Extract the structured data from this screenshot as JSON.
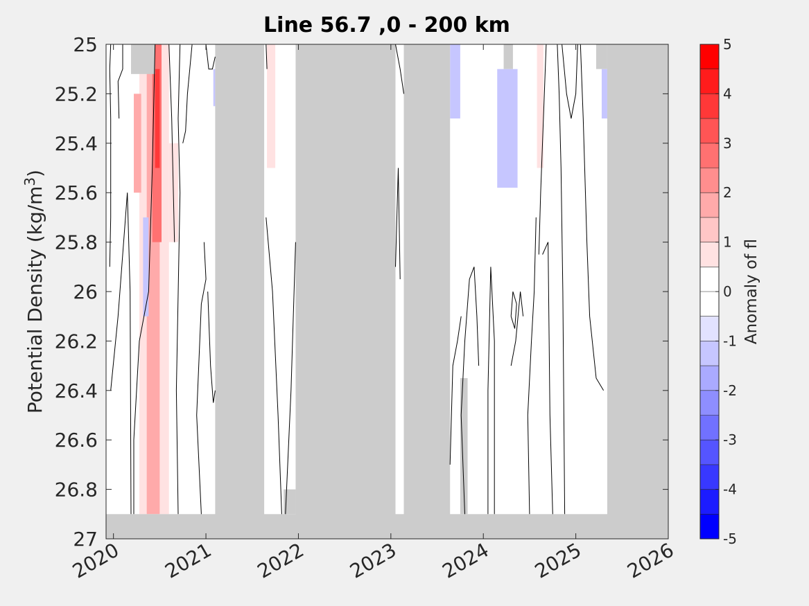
{
  "chart_data": {
    "type": "heatmap",
    "title": "Line 56.7 ,0 - 200 km",
    "ylabel_main": "Potential Density (kg/m",
    "ylabel_sup": "3",
    "ylabel_end": ")",
    "colorbar_label": "Anomaly of fl",
    "xlim": [
      2019.92,
      2026.0
    ],
    "ylim": [
      25,
      27
    ],
    "y_reversed": true,
    "x_ticks": [
      2020,
      2021,
      2022,
      2023,
      2024,
      2025,
      2026
    ],
    "x_tick_labels": [
      "2020",
      "2021",
      "2022",
      "2023",
      "2024",
      "2025",
      "2026"
    ],
    "y_ticks": [
      25,
      25.2,
      25.4,
      25.6,
      25.8,
      26,
      26.2,
      26.4,
      26.6,
      26.8,
      27
    ],
    "y_tick_labels": [
      "25",
      "25.2",
      "25.4",
      "25.6",
      "25.8",
      "26",
      "26.2",
      "26.4",
      "26.6",
      "26.8",
      "27"
    ],
    "colorbar": {
      "range": [
        -5,
        5
      ],
      "tick_labels": [
        "5",
        "4",
        "3",
        "2",
        "1",
        "0",
        "-1",
        "-2",
        "-3",
        "-4",
        "-5"
      ],
      "tick_values": [
        5,
        4,
        3,
        2,
        1,
        0,
        -1,
        -2,
        -3,
        -4,
        -5
      ],
      "levels": [
        {
          "from": 4.5,
          "to": 5,
          "color": "#ff0000"
        },
        {
          "from": 4,
          "to": 4.5,
          "color": "#ff1c1c"
        },
        {
          "from": 3.5,
          "to": 4,
          "color": "#ff3838"
        },
        {
          "from": 3,
          "to": 3.5,
          "color": "#ff5555"
        },
        {
          "from": 2.5,
          "to": 3,
          "color": "#ff7171"
        },
        {
          "from": 2,
          "to": 2.5,
          "color": "#ff8e8e"
        },
        {
          "from": 1.5,
          "to": 2,
          "color": "#ffaaaa"
        },
        {
          "from": 1,
          "to": 1.5,
          "color": "#ffc6c6"
        },
        {
          "from": 0.5,
          "to": 1,
          "color": "#ffe2e2"
        },
        {
          "from": 0,
          "to": 0.5,
          "color": "#ffffff"
        },
        {
          "from": -0.5,
          "to": 0,
          "color": "#ffffff"
        },
        {
          "from": -1,
          "to": -0.5,
          "color": "#e2e2ff"
        },
        {
          "from": -1.5,
          "to": -1,
          "color": "#c6c6ff"
        },
        {
          "from": -2,
          "to": -1.5,
          "color": "#aaaaff"
        },
        {
          "from": -2.5,
          "to": -2,
          "color": "#8e8eff"
        },
        {
          "from": -3,
          "to": -2.5,
          "color": "#7171ff"
        },
        {
          "from": -3.5,
          "to": -3,
          "color": "#5555ff"
        },
        {
          "from": -4,
          "to": -3.5,
          "color": "#3838ff"
        },
        {
          "from": -4.5,
          "to": -4,
          "color": "#1c1cff"
        },
        {
          "from": -5,
          "to": -4.5,
          "color": "#0000ff"
        }
      ]
    },
    "no_data_color": "#cccccc",
    "no_data_regions": [
      {
        "x0": 2019.92,
        "x1": 2026.0,
        "y0": 26.9,
        "y1": 27
      },
      {
        "x0": 2021.1,
        "x1": 2021.63,
        "y0": 25,
        "y1": 27
      },
      {
        "x0": 2021.97,
        "x1": 2023.05,
        "y0": 25,
        "y1": 27
      },
      {
        "x0": 2023.14,
        "x1": 2023.64,
        "y0": 25,
        "y1": 27
      },
      {
        "x0": 2025.34,
        "x1": 2026.0,
        "y0": 25,
        "y1": 27
      },
      {
        "x0": 2021.84,
        "x1": 2021.97,
        "y0": 26.8,
        "y1": 26.9
      },
      {
        "x0": 2020.19,
        "x1": 2020.45,
        "y0": 25,
        "y1": 25.12
      },
      {
        "x0": 2023.75,
        "x1": 2023.83,
        "y0": 26.35,
        "y1": 26.9
      },
      {
        "x0": 2024.22,
        "x1": 2024.32,
        "y0": 25,
        "y1": 25.1
      },
      {
        "x0": 2025.22,
        "x1": 2025.34,
        "y0": 25,
        "y1": 25.1
      }
    ],
    "anomaly_patches": [
      {
        "x0": 2020.28,
        "x1": 2020.6,
        "y0": 25,
        "y1": 26.9,
        "value": 1
      },
      {
        "x0": 2020.36,
        "x1": 2020.5,
        "y0": 25,
        "y1": 26.9,
        "value": 2
      },
      {
        "x0": 2020.42,
        "x1": 2020.52,
        "y0": 25,
        "y1": 25.8,
        "value": 3
      },
      {
        "x0": 2020.45,
        "x1": 2020.5,
        "y0": 25.1,
        "y1": 25.5,
        "value": 4
      },
      {
        "x0": 2020.22,
        "x1": 2020.3,
        "y0": 25.2,
        "y1": 25.6,
        "value": 2
      },
      {
        "x0": 2020.6,
        "x1": 2020.7,
        "y0": 25.4,
        "y1": 25.8,
        "value": 1
      },
      {
        "x0": 2020.32,
        "x1": 2020.38,
        "y0": 25.7,
        "y1": 26.1,
        "value": -1
      },
      {
        "x0": 2021.08,
        "x1": 2021.1,
        "y0": 25.1,
        "y1": 25.25,
        "value": -1
      },
      {
        "x0": 2021.66,
        "x1": 2021.75,
        "y0": 25,
        "y1": 25.5,
        "value": 1
      },
      {
        "x0": 2023.64,
        "x1": 2023.75,
        "y0": 25,
        "y1": 25.3,
        "value": -1
      },
      {
        "x0": 2024.15,
        "x1": 2024.37,
        "y0": 25.1,
        "y1": 25.58,
        "value": -1
      },
      {
        "x0": 2024.58,
        "x1": 2024.65,
        "y0": 25,
        "y1": 25.5,
        "value": 1
      },
      {
        "x0": 2025.28,
        "x1": 2025.34,
        "y0": 25.1,
        "y1": 25.3,
        "value": -1
      }
    ],
    "contours": [
      [
        [
          2019.97,
          25
        ],
        [
          2019.96,
          25.1
        ],
        [
          2019.97,
          25.3
        ],
        [
          2019.97,
          25.7
        ],
        [
          2019.96,
          25.9
        ]
      ],
      [
        [
          2020.1,
          25
        ],
        [
          2020.1,
          25.1
        ],
        [
          2020.05,
          25.15
        ],
        [
          2020.06,
          25.3
        ]
      ],
      [
        [
          2019.97,
          26.4
        ],
        [
          2020.05,
          26.1
        ],
        [
          2020.15,
          25.6
        ],
        [
          2020.18,
          26.0
        ],
        [
          2020.19,
          26.9
        ]
      ],
      [
        [
          2020.22,
          26.9
        ],
        [
          2020.22,
          26.6
        ],
        [
          2020.28,
          26.2
        ],
        [
          2020.38,
          26.0
        ],
        [
          2020.42,
          25.5
        ],
        [
          2020.45,
          25.0
        ]
      ],
      [
        [
          2020.7,
          26.9
        ],
        [
          2020.68,
          26.4
        ],
        [
          2020.72,
          25.6
        ],
        [
          2020.7,
          25.3
        ],
        [
          2020.72,
          25.0
        ]
      ],
      [
        [
          2020.6,
          25
        ],
        [
          2020.63,
          25.3
        ],
        [
          2020.66,
          25.8
        ]
      ],
      [
        [
          2020.85,
          25.0
        ],
        [
          2020.8,
          25.2
        ],
        [
          2020.78,
          25.35
        ],
        [
          2020.75,
          25.4
        ]
      ],
      [
        [
          2020.95,
          26.9
        ],
        [
          2020.9,
          26.5
        ],
        [
          2020.95,
          26.05
        ],
        [
          2021.0,
          25.95
        ],
        [
          2020.98,
          25.8
        ]
      ],
      [
        [
          2021.02,
          26.0
        ],
        [
          2021.05,
          26.3
        ],
        [
          2021.08,
          26.45
        ],
        [
          2021.1,
          26.4
        ]
      ],
      [
        [
          2021.0,
          25.0
        ],
        [
          2021.03,
          25.1
        ],
        [
          2021.07,
          25.1
        ],
        [
          2021.1,
          25.05
        ]
      ],
      [
        [
          2021.65,
          25.7
        ],
        [
          2021.72,
          26.0
        ],
        [
          2021.78,
          26.5
        ],
        [
          2021.82,
          26.9
        ]
      ],
      [
        [
          2021.65,
          25.0
        ],
        [
          2021.66,
          25.1
        ]
      ],
      [
        [
          2021.86,
          26.9
        ],
        [
          2021.92,
          26.4
        ],
        [
          2021.97,
          25.8
        ]
      ],
      [
        [
          2023.05,
          25.9
        ],
        [
          2023.08,
          25.5
        ],
        [
          2023.1,
          25.95
        ]
      ],
      [
        [
          2023.05,
          25
        ],
        [
          2023.1,
          25.1
        ],
        [
          2023.14,
          25.2
        ]
      ],
      [
        [
          2023.64,
          26.7
        ],
        [
          2023.67,
          26.3
        ],
        [
          2023.72,
          26.2
        ],
        [
          2023.76,
          26.1
        ]
      ],
      [
        [
          2023.8,
          26.9
        ],
        [
          2023.76,
          26.5
        ],
        [
          2023.8,
          26.2
        ],
        [
          2023.85,
          25.95
        ],
        [
          2023.9,
          25.9
        ],
        [
          2023.93,
          26.1
        ],
        [
          2023.95,
          26.3
        ]
      ],
      [
        [
          2024.05,
          26.9
        ],
        [
          2024.05,
          26.4
        ],
        [
          2024.08,
          25.9
        ],
        [
          2024.12,
          26.2
        ],
        [
          2024.12,
          26.9
        ]
      ],
      [
        [
          2024.3,
          26.3
        ],
        [
          2024.35,
          26.2
        ],
        [
          2024.4,
          26.0
        ],
        [
          2024.43,
          26.1
        ]
      ],
      [
        [
          2024.3,
          26.1
        ],
        [
          2024.32,
          26.0
        ],
        [
          2024.36,
          26.05
        ],
        [
          2024.34,
          26.15
        ],
        [
          2024.3,
          26.1
        ]
      ],
      [
        [
          2024.5,
          26.9
        ],
        [
          2024.48,
          26.5
        ],
        [
          2024.52,
          26.2
        ],
        [
          2024.55,
          26.0
        ],
        [
          2024.57,
          25.7
        ]
      ],
      [
        [
          2024.6,
          25.85
        ],
        [
          2024.62,
          25.6
        ],
        [
          2024.65,
          25.3
        ],
        [
          2024.68,
          25.0
        ]
      ],
      [
        [
          2024.75,
          26.9
        ],
        [
          2024.72,
          26.5
        ],
        [
          2024.7,
          25.8
        ],
        [
          2024.64,
          25.85
        ]
      ],
      [
        [
          2024.85,
          25.0
        ],
        [
          2024.9,
          25.2
        ],
        [
          2024.95,
          25.3
        ],
        [
          2025.0,
          25.2
        ],
        [
          2025.02,
          25.0
        ]
      ],
      [
        [
          2025.05,
          25.0
        ],
        [
          2025.08,
          25.3
        ],
        [
          2025.12,
          25.8
        ],
        [
          2025.15,
          26.1
        ],
        [
          2025.22,
          26.35
        ],
        [
          2025.3,
          26.4
        ]
      ],
      [
        [
          2024.8,
          25.0
        ],
        [
          2024.82,
          25.2
        ],
        [
          2024.84,
          25.5
        ],
        [
          2024.86,
          26.0
        ],
        [
          2024.88,
          26.9
        ]
      ]
    ]
  }
}
